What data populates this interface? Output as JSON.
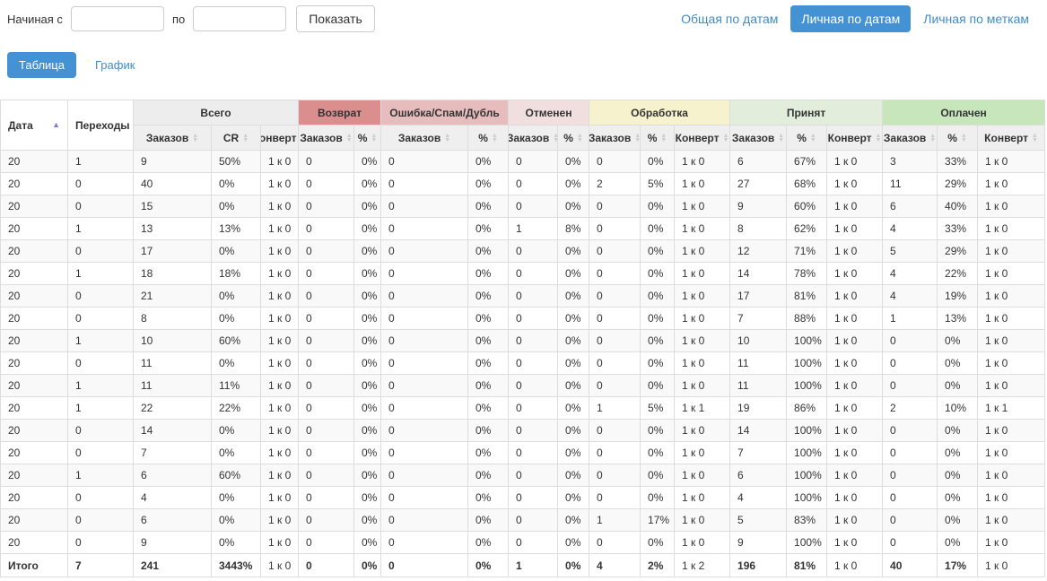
{
  "filter": {
    "label_from": "Начиная с",
    "from_value": "",
    "label_to": "по",
    "to_value": "",
    "show_button": "Показать"
  },
  "report_tabs": [
    {
      "label": "Общая по датам",
      "active": false
    },
    {
      "label": "Личная по датам",
      "active": true
    },
    {
      "label": "Личная по меткам",
      "active": false
    }
  ],
  "view_tabs": [
    {
      "label": "Таблица",
      "active": true
    },
    {
      "label": "График",
      "active": false
    }
  ],
  "colors": {
    "accent_blue": "#4492d4",
    "link_blue": "#428bca",
    "group_total": "#ededed",
    "group_return": "#db8e8e",
    "group_error": "#e7bcbc",
    "group_cancelled": "#f1dede",
    "group_processing": "#f6f2cd",
    "group_accepted": "#e2eedb",
    "group_paid": "#c8e6bc",
    "sort_active_arrow": "#7d7dd4"
  },
  "table": {
    "date_col": "Дата",
    "transitions_col": "Переходы",
    "groups": [
      {
        "label": "Всего",
        "cols": 3,
        "bg": "#ededed"
      },
      {
        "label": "Возврат",
        "cols": 2,
        "bg": "#db8e8e"
      },
      {
        "label": "Ошибка/Спам/Дубль",
        "cols": 2,
        "bg": "#e7bcbc"
      },
      {
        "label": "Отменен",
        "cols": 2,
        "bg": "#f1dede"
      },
      {
        "label": "Обработка",
        "cols": 3,
        "bg": "#f6f2cd"
      },
      {
        "label": "Принят",
        "cols": 3,
        "bg": "#e2eedb"
      },
      {
        "label": "Оплачен",
        "cols": 3,
        "bg": "#c8e6bc"
      }
    ],
    "subheaders": [
      "Заказов",
      "CR",
      "Конверт",
      "Заказов",
      "%",
      "Заказов",
      "%",
      "Заказов",
      "%",
      "Заказов",
      "%",
      "Конверт",
      "Заказов",
      "%",
      "Конверт",
      "Заказов",
      "%",
      "Конверт"
    ],
    "col_keys": [
      "date",
      "transitions",
      "total-orders",
      "total-cr",
      "total-conv",
      "return-orders",
      "return-pct",
      "error-orders",
      "error-pct",
      "cancelled-orders",
      "cancelled-pct",
      "processing-orders",
      "processing-pct",
      "processing-conv",
      "accepted-orders",
      "accepted-pct",
      "accepted-conv",
      "paid-orders",
      "paid-pct",
      "paid-conv"
    ],
    "rows": [
      [
        "20",
        "1",
        "9",
        "50%",
        "1 к 0",
        "0",
        "0%",
        "0",
        "0%",
        "0",
        "0%",
        "0",
        "0%",
        "1 к 0",
        "6",
        "67%",
        "1 к 0",
        "3",
        "33%",
        "1 к 0"
      ],
      [
        "20",
        "0",
        "40",
        "0%",
        "1 к 0",
        "0",
        "0%",
        "0",
        "0%",
        "0",
        "0%",
        "2",
        "5%",
        "1 к 0",
        "27",
        "68%",
        "1 к 0",
        "11",
        "29%",
        "1 к 0"
      ],
      [
        "20",
        "0",
        "15",
        "0%",
        "1 к 0",
        "0",
        "0%",
        "0",
        "0%",
        "0",
        "0%",
        "0",
        "0%",
        "1 к 0",
        "9",
        "60%",
        "1 к 0",
        "6",
        "40%",
        "1 к 0"
      ],
      [
        "20",
        "1",
        "13",
        "13%",
        "1 к 0",
        "0",
        "0%",
        "0",
        "0%",
        "1",
        "8%",
        "0",
        "0%",
        "1 к 0",
        "8",
        "62%",
        "1 к 0",
        "4",
        "33%",
        "1 к 0"
      ],
      [
        "20",
        "0",
        "17",
        "0%",
        "1 к 0",
        "0",
        "0%",
        "0",
        "0%",
        "0",
        "0%",
        "0",
        "0%",
        "1 к 0",
        "12",
        "71%",
        "1 к 0",
        "5",
        "29%",
        "1 к 0"
      ],
      [
        "20",
        "1",
        "18",
        "18%",
        "1 к 0",
        "0",
        "0%",
        "0",
        "0%",
        "0",
        "0%",
        "0",
        "0%",
        "1 к 0",
        "14",
        "78%",
        "1 к 0",
        "4",
        "22%",
        "1 к 0"
      ],
      [
        "20",
        "0",
        "21",
        "0%",
        "1 к 0",
        "0",
        "0%",
        "0",
        "0%",
        "0",
        "0%",
        "0",
        "0%",
        "1 к 0",
        "17",
        "81%",
        "1 к 0",
        "4",
        "19%",
        "1 к 0"
      ],
      [
        "20",
        "0",
        "8",
        "0%",
        "1 к 0",
        "0",
        "0%",
        "0",
        "0%",
        "0",
        "0%",
        "0",
        "0%",
        "1 к 0",
        "7",
        "88%",
        "1 к 0",
        "1",
        "13%",
        "1 к 0"
      ],
      [
        "20",
        "1",
        "10",
        "60%",
        "1 к 0",
        "0",
        "0%",
        "0",
        "0%",
        "0",
        "0%",
        "0",
        "0%",
        "1 к 0",
        "10",
        "100%",
        "1 к 0",
        "0",
        "0%",
        "1 к 0"
      ],
      [
        "20",
        "0",
        "11",
        "0%",
        "1 к 0",
        "0",
        "0%",
        "0",
        "0%",
        "0",
        "0%",
        "0",
        "0%",
        "1 к 0",
        "11",
        "100%",
        "1 к 0",
        "0",
        "0%",
        "1 к 0"
      ],
      [
        "20",
        "1",
        "11",
        "11%",
        "1 к 0",
        "0",
        "0%",
        "0",
        "0%",
        "0",
        "0%",
        "0",
        "0%",
        "1 к 0",
        "11",
        "100%",
        "1 к 0",
        "0",
        "0%",
        "1 к 0"
      ],
      [
        "20",
        "1",
        "22",
        "22%",
        "1 к 0",
        "0",
        "0%",
        "0",
        "0%",
        "0",
        "0%",
        "1",
        "5%",
        "1 к 1",
        "19",
        "86%",
        "1 к 0",
        "2",
        "10%",
        "1 к 1"
      ],
      [
        "20",
        "0",
        "14",
        "0%",
        "1 к 0",
        "0",
        "0%",
        "0",
        "0%",
        "0",
        "0%",
        "0",
        "0%",
        "1 к 0",
        "14",
        "100%",
        "1 к 0",
        "0",
        "0%",
        "1 к 0"
      ],
      [
        "20",
        "0",
        "7",
        "0%",
        "1 к 0",
        "0",
        "0%",
        "0",
        "0%",
        "0",
        "0%",
        "0",
        "0%",
        "1 к 0",
        "7",
        "100%",
        "1 к 0",
        "0",
        "0%",
        "1 к 0"
      ],
      [
        "20",
        "1",
        "6",
        "60%",
        "1 к 0",
        "0",
        "0%",
        "0",
        "0%",
        "0",
        "0%",
        "0",
        "0%",
        "1 к 0",
        "6",
        "100%",
        "1 к 0",
        "0",
        "0%",
        "1 к 0"
      ],
      [
        "20",
        "0",
        "4",
        "0%",
        "1 к 0",
        "0",
        "0%",
        "0",
        "0%",
        "0",
        "0%",
        "0",
        "0%",
        "1 к 0",
        "4",
        "100%",
        "1 к 0",
        "0",
        "0%",
        "1 к 0"
      ],
      [
        "20",
        "0",
        "6",
        "0%",
        "1 к 0",
        "0",
        "0%",
        "0",
        "0%",
        "0",
        "0%",
        "1",
        "17%",
        "1 к 0",
        "5",
        "83%",
        "1 к 0",
        "0",
        "0%",
        "1 к 0"
      ],
      [
        "20",
        "0",
        "9",
        "0%",
        "1 к 0",
        "0",
        "0%",
        "0",
        "0%",
        "0",
        "0%",
        "0",
        "0%",
        "1 к 0",
        "9",
        "100%",
        "1 к 0",
        "0",
        "0%",
        "1 к 0"
      ]
    ],
    "total_label": "Итого",
    "total": [
      "7",
      "241",
      "3443%",
      "1 к 0",
      "0",
      "0%",
      "0",
      "0%",
      "1",
      "0%",
      "4",
      "2%",
      "1 к 2",
      "196",
      "81%",
      "1 к 0",
      "40",
      "17%",
      "1 к 0"
    ]
  }
}
